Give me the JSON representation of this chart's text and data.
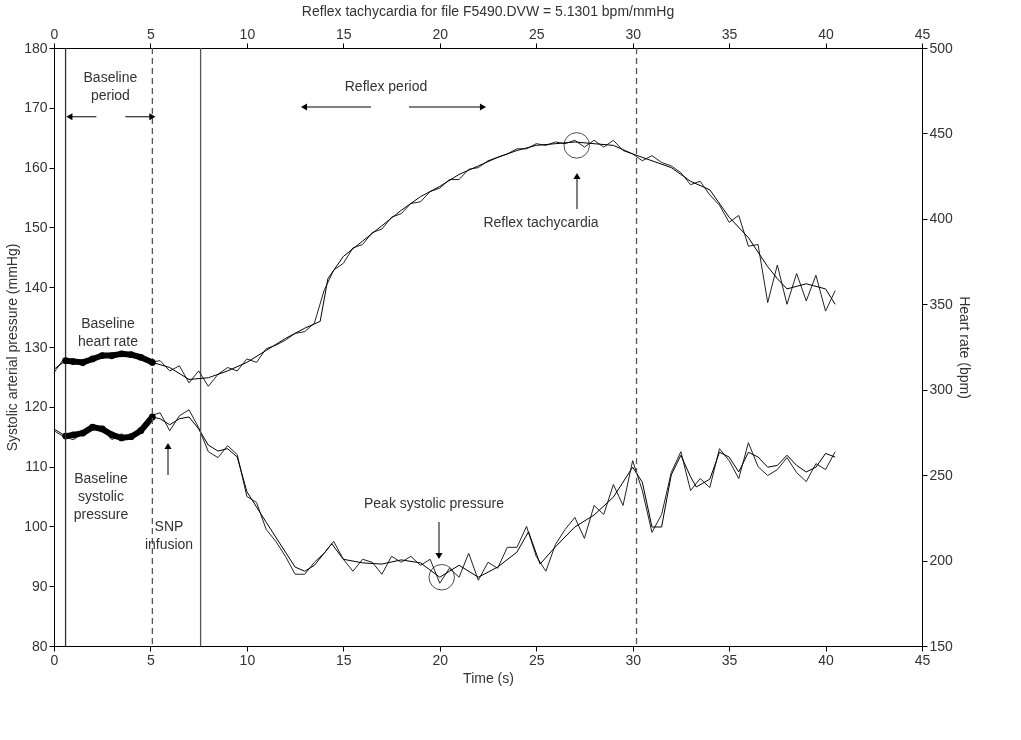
{
  "chart_data": {
    "type": "line",
    "title": "Reflex tachycardia for file F5490.DVW = 5.1301 bpm/mmHg",
    "xlabel": "Time (s)",
    "ylabel": "Systolic arterial pressure (mmHg)",
    "y2label": "Heart rate (bpm)",
    "xlim": [
      0,
      45
    ],
    "xticks": [
      0,
      5,
      10,
      15,
      20,
      25,
      30,
      35,
      40,
      45
    ],
    "x2lim": [
      0,
      45
    ],
    "x2ticks": [
      0,
      5,
      10,
      15,
      20,
      25,
      30,
      35,
      40,
      45
    ],
    "ylim": [
      80,
      180
    ],
    "yticks": [
      80,
      90,
      100,
      110,
      120,
      130,
      140,
      150,
      160,
      170,
      180
    ],
    "y2lim": [
      150,
      500
    ],
    "y2ticks": [
      150,
      200,
      250,
      300,
      350,
      400,
      450,
      500
    ],
    "grid": false,
    "series": [
      {
        "axis": "y2",
        "color": "#222222",
        "x": [
          0,
          0.5,
          1,
          1.5,
          2,
          2.5,
          3,
          3.5,
          4,
          4.5,
          5,
          5.5,
          6,
          6.5,
          7,
          7.5,
          8,
          8.5,
          9,
          9.5,
          10,
          10.5,
          11,
          11.5,
          12,
          12.5,
          13,
          13.5,
          14,
          14.5,
          15,
          15.5,
          16,
          16.5,
          17,
          17.5,
          18,
          18.5,
          19,
          19.5,
          20,
          20.5,
          21,
          21.5,
          22,
          22.5,
          23,
          23.5,
          24,
          24.5,
          25,
          25.5,
          26,
          26.5,
          27,
          27.5,
          28,
          28.5,
          29,
          29.5,
          30,
          30.5,
          31,
          31.5,
          32,
          32.5,
          33,
          33.5,
          34,
          34.5,
          35,
          35.5,
          36,
          36.5,
          37,
          37.5,
          38,
          38.5,
          39,
          39.5,
          40,
          40.5
        ],
        "values": [
          310,
          318,
          316,
          314,
          319,
          321,
          318,
          321,
          320,
          320,
          316,
          317,
          311,
          314,
          304,
          311,
          302,
          309,
          313,
          311,
          318,
          316,
          324,
          326,
          329,
          333,
          334,
          339,
          358,
          370,
          374,
          383,
          385,
          392,
          394,
          401,
          403,
          409,
          410,
          416,
          418,
          423,
          423,
          429,
          430,
          434,
          436,
          438,
          441,
          441,
          444,
          443,
          445,
          444,
          446,
          442,
          446,
          442,
          446,
          440,
          438,
          434,
          437,
          433,
          431,
          427,
          420,
          422,
          414,
          408,
          398,
          402,
          384,
          385,
          351,
          373,
          350,
          368,
          352,
          367,
          346,
          358
        ]
      },
      {
        "axis": "y2",
        "color": "#000000",
        "x": [
          0,
          0.6,
          1.5,
          2.5,
          3.5,
          4.5,
          5.1,
          6,
          7,
          8,
          9,
          10,
          11,
          12,
          13,
          13.8,
          14.2,
          15,
          16,
          17,
          18,
          19,
          20,
          21,
          22,
          23,
          24,
          25,
          26,
          27,
          28,
          29,
          30,
          31,
          32,
          33,
          34,
          35,
          36,
          37,
          37.5,
          38,
          39,
          40,
          40.5
        ],
        "values": [
          312,
          317,
          316,
          320,
          320,
          319,
          316,
          313,
          306,
          307,
          311,
          316,
          323,
          330,
          336,
          340,
          365,
          378,
          387,
          396,
          405,
          413,
          419,
          426,
          431,
          436,
          440,
          443,
          444,
          445,
          444,
          443,
          438,
          434,
          430,
          422,
          417,
          401,
          389,
          372,
          365,
          359,
          362,
          359,
          350
        ]
      },
      {
        "axis": "y2",
        "color": "#000000",
        "marker": "circle",
        "x": [
          0.6,
          1,
          1.5,
          2,
          2.5,
          3,
          3.5,
          4,
          4.5,
          5.1
        ],
        "values": [
          317,
          316.5,
          316,
          318,
          320,
          320,
          321,
          320.5,
          319,
          316
        ]
      },
      {
        "color": "#222222",
        "x": [
          0,
          0.5,
          1,
          1.5,
          2,
          2.5,
          3,
          3.5,
          4,
          4.5,
          5,
          5.5,
          6,
          6.5,
          7,
          7.5,
          8,
          8.5,
          9,
          9.5,
          10,
          10.5,
          11,
          11.5,
          12,
          12.5,
          13,
          13.5,
          14,
          14.5,
          15,
          15.5,
          16,
          16.5,
          17,
          17.5,
          18,
          18.5,
          19,
          19.5,
          20,
          20.5,
          21,
          21.5,
          22,
          22.5,
          23,
          23.5,
          24,
          24.5,
          25,
          25.5,
          26,
          26.5,
          27,
          27.5,
          28,
          28.5,
          29,
          29.5,
          30,
          30.5,
          31,
          31.5,
          32,
          32.5,
          33,
          33.5,
          34,
          34.5,
          35,
          35.5,
          36,
          36.5,
          37,
          37.5,
          38,
          38.5,
          39,
          39.5,
          40,
          40.5
        ],
        "values": [
          116,
          115,
          114.5,
          115.5,
          117,
          116.5,
          114.5,
          115.5,
          114.5,
          116.5,
          118.5,
          119,
          116,
          118.5,
          119.5,
          116.5,
          112.5,
          111.5,
          113.5,
          112,
          105,
          104,
          99.5,
          97.5,
          95,
          92,
          92,
          94,
          95.5,
          97.5,
          94.5,
          92.5,
          94.5,
          94,
          92,
          95,
          94,
          95,
          93.5,
          94.5,
          90.5,
          93,
          91.5,
          95.5,
          91,
          94,
          93,
          96.5,
          96.5,
          100,
          95,
          92.5,
          97,
          99.5,
          101.5,
          98,
          103.5,
          102,
          107,
          103.5,
          111,
          106,
          99,
          102,
          109,
          112.5,
          106,
          108,
          106.5,
          113,
          111,
          108,
          114,
          110,
          108.5,
          109.5,
          111.5,
          109,
          107.5,
          110.5,
          109.5,
          112.5
        ]
      },
      {
        "color": "#000000",
        "x": [
          0,
          0.6,
          1.5,
          2.2,
          3,
          4,
          4.7,
          5.1,
          5.5,
          6,
          6.5,
          7,
          7.5,
          8,
          8.5,
          9,
          9.5,
          10,
          11,
          12,
          12.5,
          13,
          13.5,
          14.4,
          15,
          16,
          17,
          18,
          19,
          20,
          21,
          22,
          23,
          24,
          24.6,
          25.2,
          26,
          27,
          28,
          29,
          30,
          30.5,
          31,
          31.5,
          32,
          32.5,
          33,
          33.3,
          34,
          34.5,
          35,
          35.5,
          36,
          36.5,
          37,
          37.5,
          38,
          38.5,
          39,
          39.5,
          40,
          40.5
        ],
        "values": [
          116.3,
          115.1,
          115.6,
          116.6,
          115.3,
          115,
          116.6,
          118.3,
          118,
          117,
          118,
          118.3,
          116.3,
          113.6,
          112.6,
          113,
          111.6,
          105.8,
          100.7,
          95.7,
          93.2,
          92.5,
          93.5,
          97.1,
          94.5,
          93.9,
          93.7,
          94.4,
          93.9,
          91.5,
          93.5,
          91.5,
          93.2,
          95.7,
          99.1,
          93.7,
          96.6,
          99.9,
          101.9,
          104.9,
          109.9,
          107.4,
          99.9,
          99.9,
          108.6,
          111.9,
          108.3,
          106.6,
          107.9,
          112.4,
          111.6,
          109.1,
          112.4,
          111.6,
          109.9,
          110.2,
          111.9,
          110.2,
          109.1,
          109.9,
          112.2,
          111.6
        ]
      },
      {
        "color": "#000000",
        "marker": "circle",
        "x": [
          0.6,
          1,
          1.5,
          2,
          2.5,
          3,
          3.5,
          4,
          4.5,
          5.1
        ],
        "values": [
          115.1,
          115.3,
          115.6,
          116.6,
          116.3,
          115.3,
          114.8,
          115,
          116,
          118.3
        ]
      },
      {
        "type": "scatter",
        "axis": "y2",
        "color": "#000000",
        "marker": "circle",
        "x": [
          27.1
        ],
        "values": [
          443
        ]
      },
      {
        "type": "scatter",
        "color": "#000000",
        "marker": "circle",
        "x": [
          20.1
        ],
        "values": [
          91.5
        ]
      }
    ],
    "ref_lines": [
      {
        "axis": "x",
        "value": 0.6,
        "color": "#333333",
        "line_style": "solid"
      },
      {
        "axis": "x",
        "value": 5.1,
        "color": "#555555",
        "line_style": "dashed"
      },
      {
        "axis": "x",
        "value": 7.6,
        "color": "#555555",
        "line_style": "solid"
      },
      {
        "axis": "x",
        "value": 30.2,
        "color": "#555555",
        "line_style": "dashed"
      }
    ],
    "annotations": [
      {
        "text": "Baseline\nperiod",
        "x": 5.1,
        "y": 168.5
      },
      "Reflex period",
      "Reflex tachycardia",
      "Peak systolic pressure",
      "Baseline\nheart rate",
      "Baseline\nsystolic\npressure",
      "SNP\ninfusion"
    ]
  }
}
